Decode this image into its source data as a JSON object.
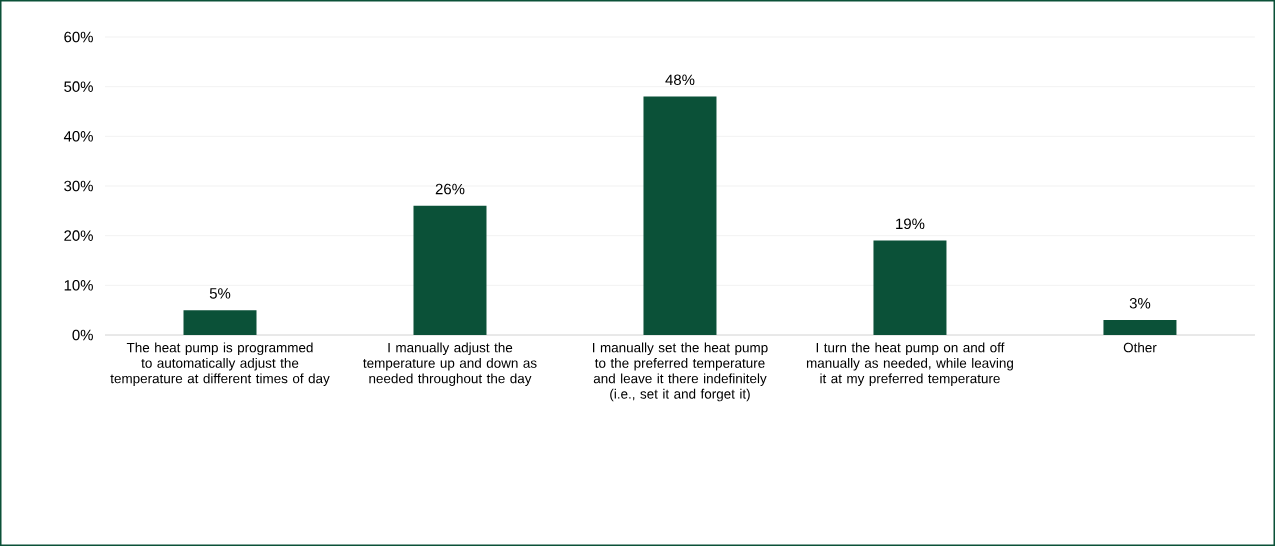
{
  "chart_data": {
    "type": "bar",
    "categories": [
      "The heat pump is programmed to automatically adjust the temperature at different times of day",
      "I manually adjust the temperature up and down as needed throughout the day",
      "I manually set the heat pump to the preferred temperature and leave it there indefinitely (i.e., set it and forget it)",
      "I turn the heat pump on and off manually as needed, while leaving it at my preferred temperature",
      "Other"
    ],
    "values": [
      5,
      26,
      48,
      19,
      3
    ],
    "value_labels": [
      "5%",
      "26%",
      "48%",
      "19%",
      "3%"
    ],
    "color": "#0b5138",
    "ylim": [
      0,
      60
    ],
    "yticks": [
      {
        "value": 0,
        "label": "0%"
      },
      {
        "value": 10,
        "label": "10%"
      },
      {
        "value": 20,
        "label": "20%"
      },
      {
        "value": 30,
        "label": "30%"
      },
      {
        "value": 40,
        "label": "40%"
      },
      {
        "value": 50,
        "label": "50%"
      },
      {
        "value": 60,
        "label": "60%"
      }
    ],
    "grid": "y"
  }
}
